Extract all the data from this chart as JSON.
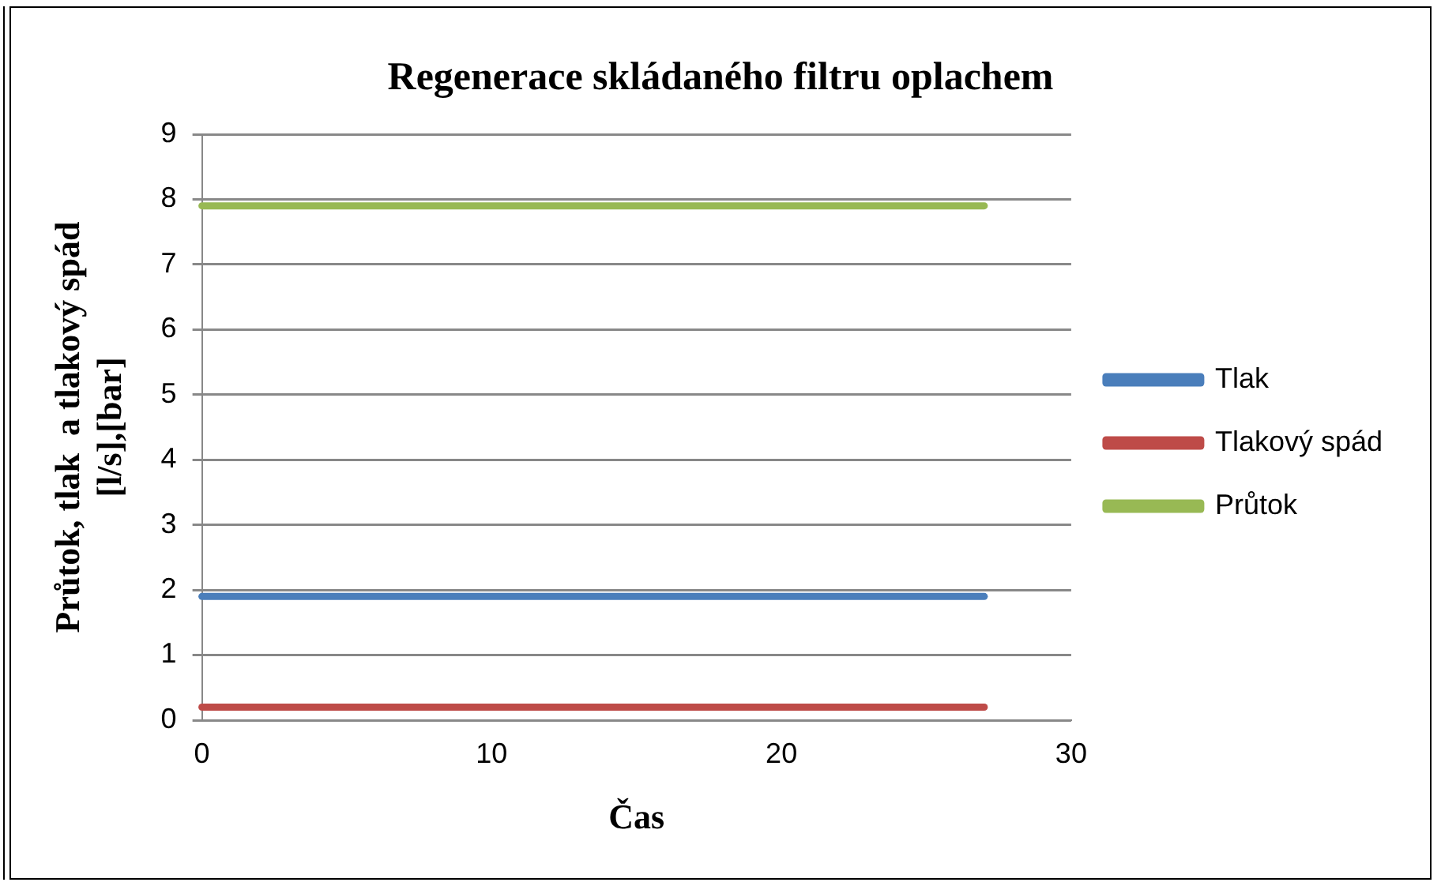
{
  "chart_data": {
    "type": "line",
    "title": "Regenerace skládaného filtru oplachem",
    "xlabel": "Čas",
    "ylabel": "Průtok, tlak  a tlakový spád [l/s],[bar]",
    "xlim": [
      0,
      30
    ],
    "xticks": [
      0,
      10,
      20,
      30
    ],
    "ylim": [
      0,
      9
    ],
    "yticks": [
      0,
      1,
      2,
      3,
      4,
      5,
      6,
      7,
      8,
      9
    ],
    "grid": "y",
    "legend": "right",
    "marker": "none",
    "line_style": "solid",
    "x": [
      0,
      27
    ],
    "series": [
      {
        "name": "Tlak",
        "color": "#4a7ebb",
        "values": [
          1.9,
          1.9
        ]
      },
      {
        "name": "Tlakový spád",
        "color": "#be4b48",
        "values": [
          0.2,
          0.2
        ]
      },
      {
        "name": "Průtok",
        "color": "#98b954",
        "values": [
          7.9,
          7.9
        ]
      }
    ]
  }
}
